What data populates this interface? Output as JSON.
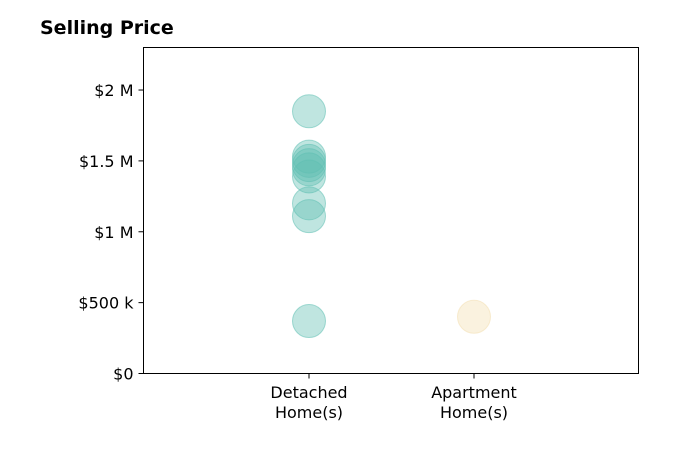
{
  "chart_data": {
    "type": "scatter",
    "title": "Selling Price",
    "xlabel": "",
    "ylabel": "",
    "categories": [
      [
        "Detached",
        "Home(s)"
      ],
      [
        "Apartment",
        "Home(s)"
      ]
    ],
    "ylim": [
      0,
      2300000
    ],
    "yticks": [
      {
        "value": 0,
        "label": "$0"
      },
      {
        "value": 500000,
        "label": "$500 k"
      },
      {
        "value": 1000000,
        "label": "$1 M"
      },
      {
        "value": 1500000,
        "label": "$1.5 M"
      },
      {
        "value": 2000000,
        "label": "$2 M"
      }
    ],
    "grid": false,
    "series": [
      {
        "category_index": 0,
        "color": "#5fbfb2",
        "values": [
          1850000,
          1530000,
          1500000,
          1470000,
          1440000,
          1390000,
          1200000,
          1110000,
          370000
        ]
      },
      {
        "category_index": 1,
        "color": "#f3dfb0",
        "values": [
          400000
        ]
      }
    ]
  }
}
